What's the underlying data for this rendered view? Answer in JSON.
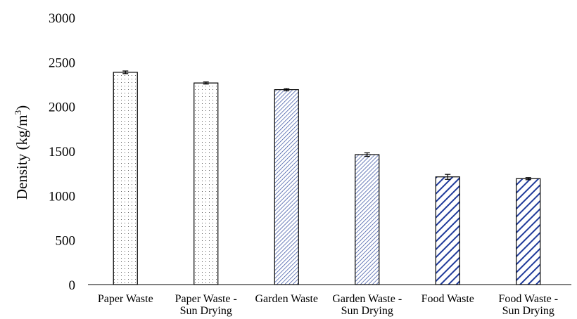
{
  "chart_data": {
    "type": "bar",
    "title": "",
    "xlabel": "",
    "ylabel": "Density (kg/m³)",
    "ylabel_parts": {
      "main": "Density (kg/m",
      "superscript": "3",
      "close": ")"
    },
    "ylim": [
      0,
      3000
    ],
    "yticks": [
      0,
      500,
      1000,
      1500,
      2000,
      2500,
      3000
    ],
    "grid": false,
    "categories": [
      [
        "Paper Waste"
      ],
      [
        "Paper Waste -",
        "Sun Drying"
      ],
      [
        "Garden Waste"
      ],
      [
        "Garden Waste -",
        "Sun Drying"
      ],
      [
        "Food Waste"
      ],
      [
        "Food Waste -",
        "Sun Drying"
      ]
    ],
    "values": [
      2385,
      2265,
      2190,
      1460,
      1210,
      1190
    ],
    "errors": [
      15,
      12,
      12,
      20,
      28,
      12
    ],
    "fill_patterns": [
      "dots",
      "dots",
      "diagonal-fine",
      "diagonal-fine",
      "diagonal-bold",
      "diagonal-bold"
    ],
    "colors": {
      "dots": "#333333",
      "diagonal_fine": "#2f4a9e",
      "diagonal_bold": "#1f3a9a",
      "outline": "#000000",
      "axis": "#000000"
    }
  }
}
